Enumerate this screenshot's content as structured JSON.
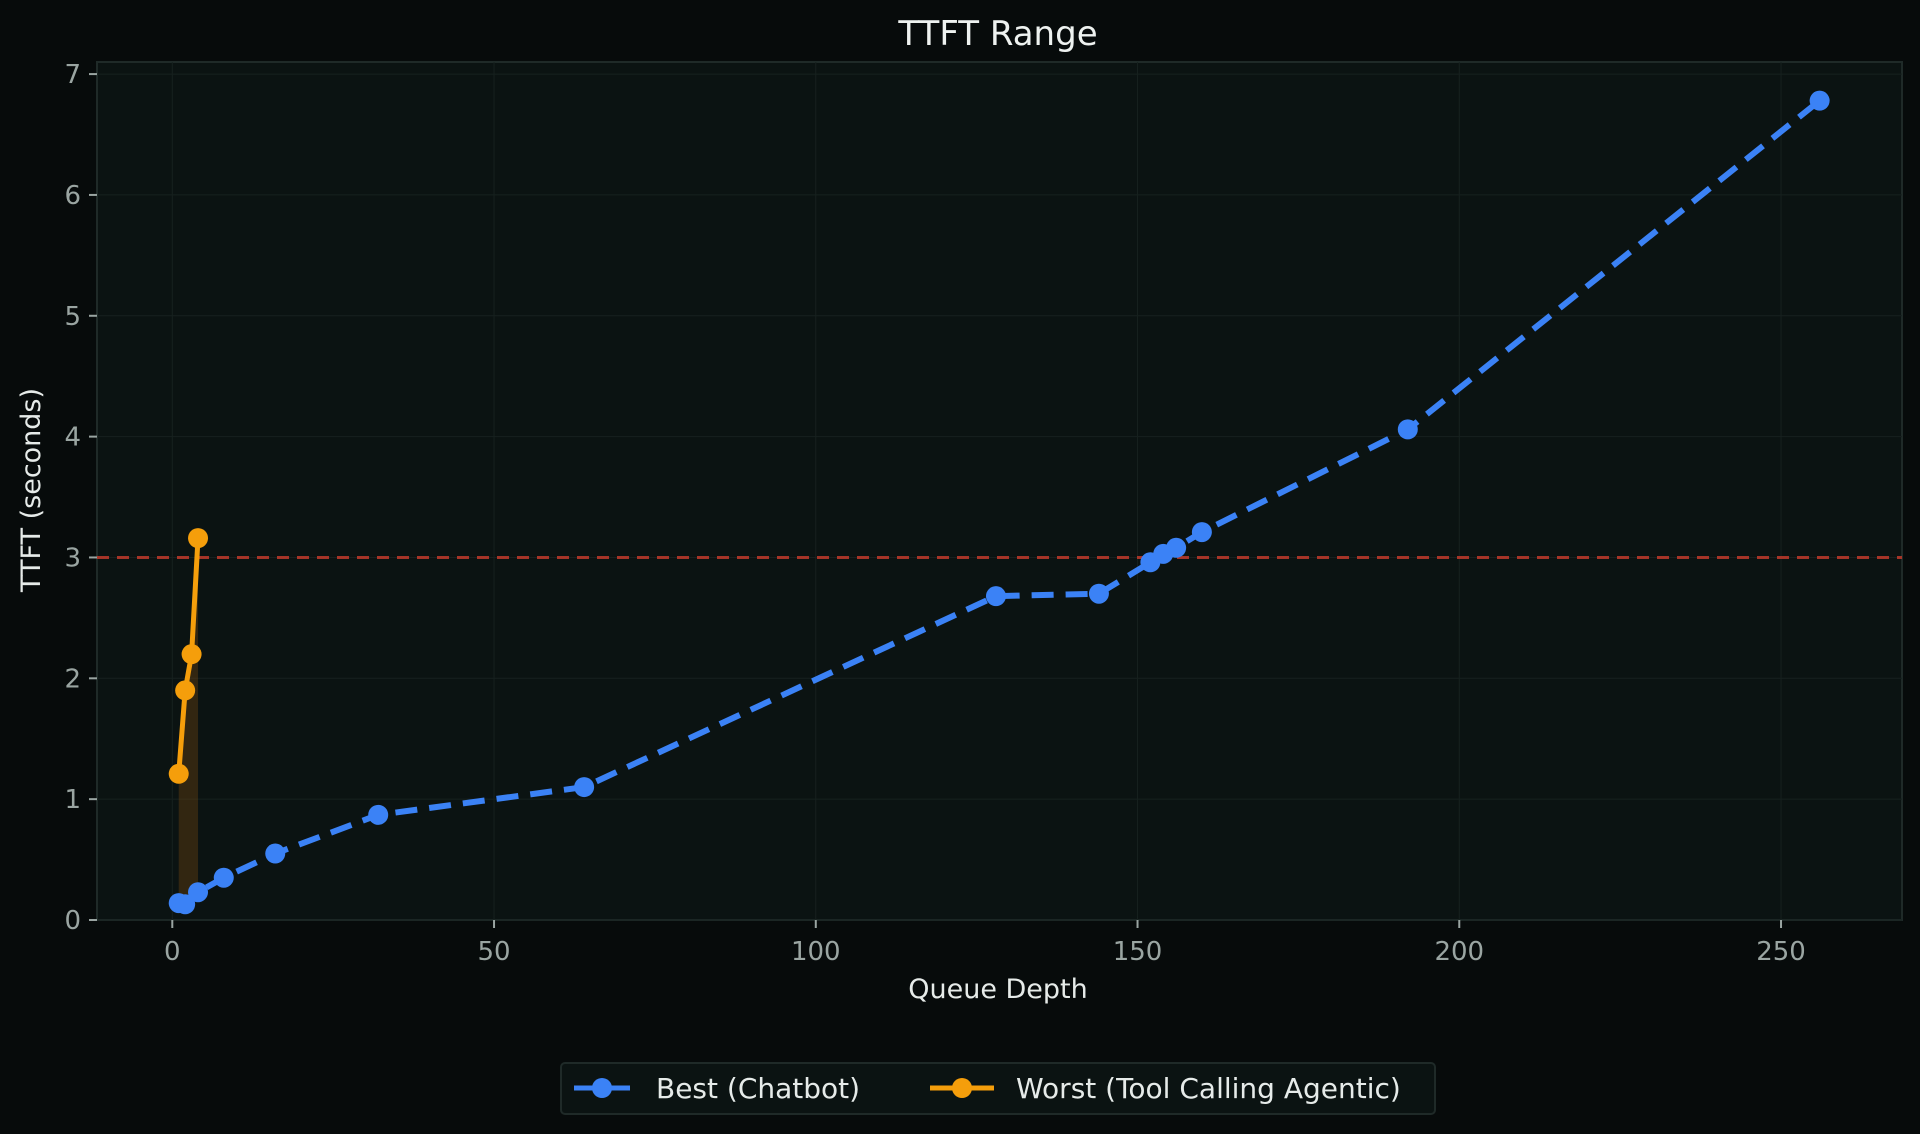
{
  "chart_data": {
    "type": "line",
    "title": "TTFT Range",
    "xlabel": "Queue Depth",
    "ylabel": "TTFT (seconds)",
    "xlim": [
      -11.7,
      268.8
    ],
    "ylim": [
      0,
      7.1
    ],
    "xticks": [
      0,
      50,
      100,
      150,
      200,
      250
    ],
    "yticks": [
      0,
      1,
      2,
      3,
      4,
      5,
      6,
      7
    ],
    "grid": true,
    "legend_position": "bottom-center",
    "threshold": {
      "y": 3,
      "color": "#c0392b",
      "style": "dashed"
    },
    "series": [
      {
        "name": "Best (Chatbot)",
        "color": "#3b82f6",
        "style": "dashed",
        "marker": "circle",
        "x": [
          1,
          2,
          4,
          8,
          16,
          32,
          64,
          128,
          144,
          152,
          154,
          156,
          160,
          192,
          256
        ],
        "y": [
          0.14,
          0.13,
          0.23,
          0.35,
          0.55,
          0.87,
          1.1,
          2.68,
          2.7,
          2.96,
          3.03,
          3.08,
          3.21,
          4.06,
          6.78
        ]
      },
      {
        "name": "Worst (Tool Calling Agentic)",
        "color": "#f59e0b",
        "style": "solid",
        "marker": "circle",
        "x": [
          1,
          2,
          3,
          4
        ],
        "y": [
          1.21,
          1.9,
          2.2,
          3.16
        ]
      }
    ],
    "fill_between": {
      "x_range": [
        1,
        4
      ],
      "color": "#7a4a12",
      "opacity": 0.35
    }
  },
  "legend": {
    "items": [
      {
        "label": "Best (Chatbot)",
        "color": "#3b82f6"
      },
      {
        "label": "Worst (Tool Calling Agentic)",
        "color": "#f59e0b"
      }
    ]
  }
}
